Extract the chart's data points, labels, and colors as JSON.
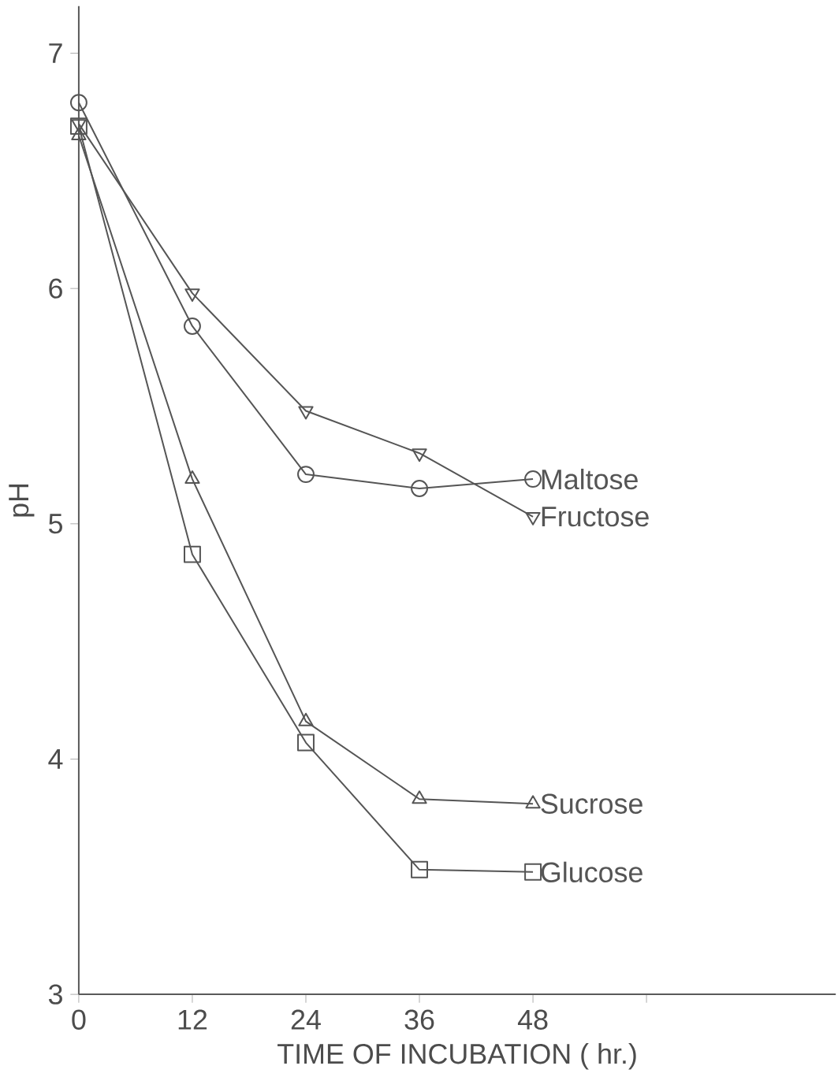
{
  "chart_data": {
    "type": "line",
    "xlabel": "TIME    OF    INCUBATION    ( hr.)",
    "ylabel": "pH",
    "x": [
      0,
      12,
      24,
      36,
      48
    ],
    "series": [
      {
        "name": "Maltose",
        "color": "#555555",
        "marker": "circle",
        "values": [
          6.79,
          5.84,
          5.21,
          5.15,
          5.19
        ]
      },
      {
        "name": "Fructose",
        "color": "#555555",
        "marker": "triangle down",
        "values": [
          6.7,
          5.98,
          5.48,
          5.3,
          5.03
        ]
      },
      {
        "name": "Sucrose",
        "color": "#555555",
        "marker": "triangle",
        "values": [
          6.65,
          5.19,
          4.16,
          3.83,
          3.81
        ]
      },
      {
        "name": "Glucose",
        "color": "#555555",
        "marker": "square",
        "values": [
          6.69,
          4.87,
          4.07,
          3.53,
          3.52
        ]
      }
    ],
    "xlim": [
      0,
      80
    ],
    "ylim": [
      3,
      7.2
    ],
    "xticks": [
      0,
      12,
      24,
      36,
      48,
      {
        "value": 60,
        "label": null
      }
    ],
    "yticks": [
      3,
      4,
      5,
      6,
      7
    ],
    "grid": false,
    "line_style": "solid"
  }
}
